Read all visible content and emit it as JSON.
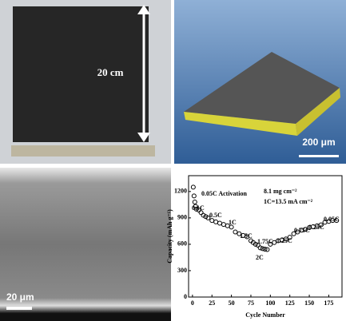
{
  "images": {
    "photo_label": "20 cm",
    "render_scale": "200 μm",
    "sem_scale": "20 μm"
  },
  "chart_data": {
    "type": "scatter",
    "x_label": "Cycle Number",
    "y_label": "Capacity (mAh g⁻¹)",
    "annotations": [
      "0.05C Activation",
      "8.1 mg cm⁻²",
      "1C=13.5 mA cm⁻²",
      "0.1C",
      "0.5C",
      "1C",
      "1.5C",
      "1.75C",
      "2C",
      "1.25C",
      "0.75C",
      "0.25C",
      "0.05C"
    ],
    "x": [
      1,
      2,
      3,
      4,
      5,
      8,
      11,
      14,
      17,
      20,
      25,
      30,
      35,
      40,
      45,
      50,
      55,
      60,
      65,
      70,
      75,
      78,
      81,
      84,
      87,
      90,
      93,
      96,
      100,
      105,
      110,
      115,
      120,
      125,
      130,
      135,
      140,
      145,
      150,
      155,
      160,
      165,
      170,
      175,
      180,
      185
    ],
    "series": [
      {
        "name": "Capacity",
        "color": "#000000",
        "values": [
          1250,
          1150,
          1080,
          1030,
          1000,
          990,
          960,
          930,
          915,
          900,
          870,
          855,
          840,
          825,
          810,
          795,
          740,
          720,
          700,
          685,
          640,
          620,
          600,
          590,
          560,
          550,
          545,
          540,
          600,
          620,
          640,
          650,
          660,
          680,
          720,
          740,
          760,
          770,
          790,
          800,
          810,
          820,
          850,
          860,
          870,
          870
        ]
      }
    ],
    "xlim": [
      -5,
      192
    ],
    "ylim": [
      0,
      1380
    ],
    "xticks": [
      0,
      25,
      50,
      75,
      100,
      125,
      150,
      175
    ],
    "yticks": [
      0,
      300,
      600,
      900,
      1200
    ]
  }
}
